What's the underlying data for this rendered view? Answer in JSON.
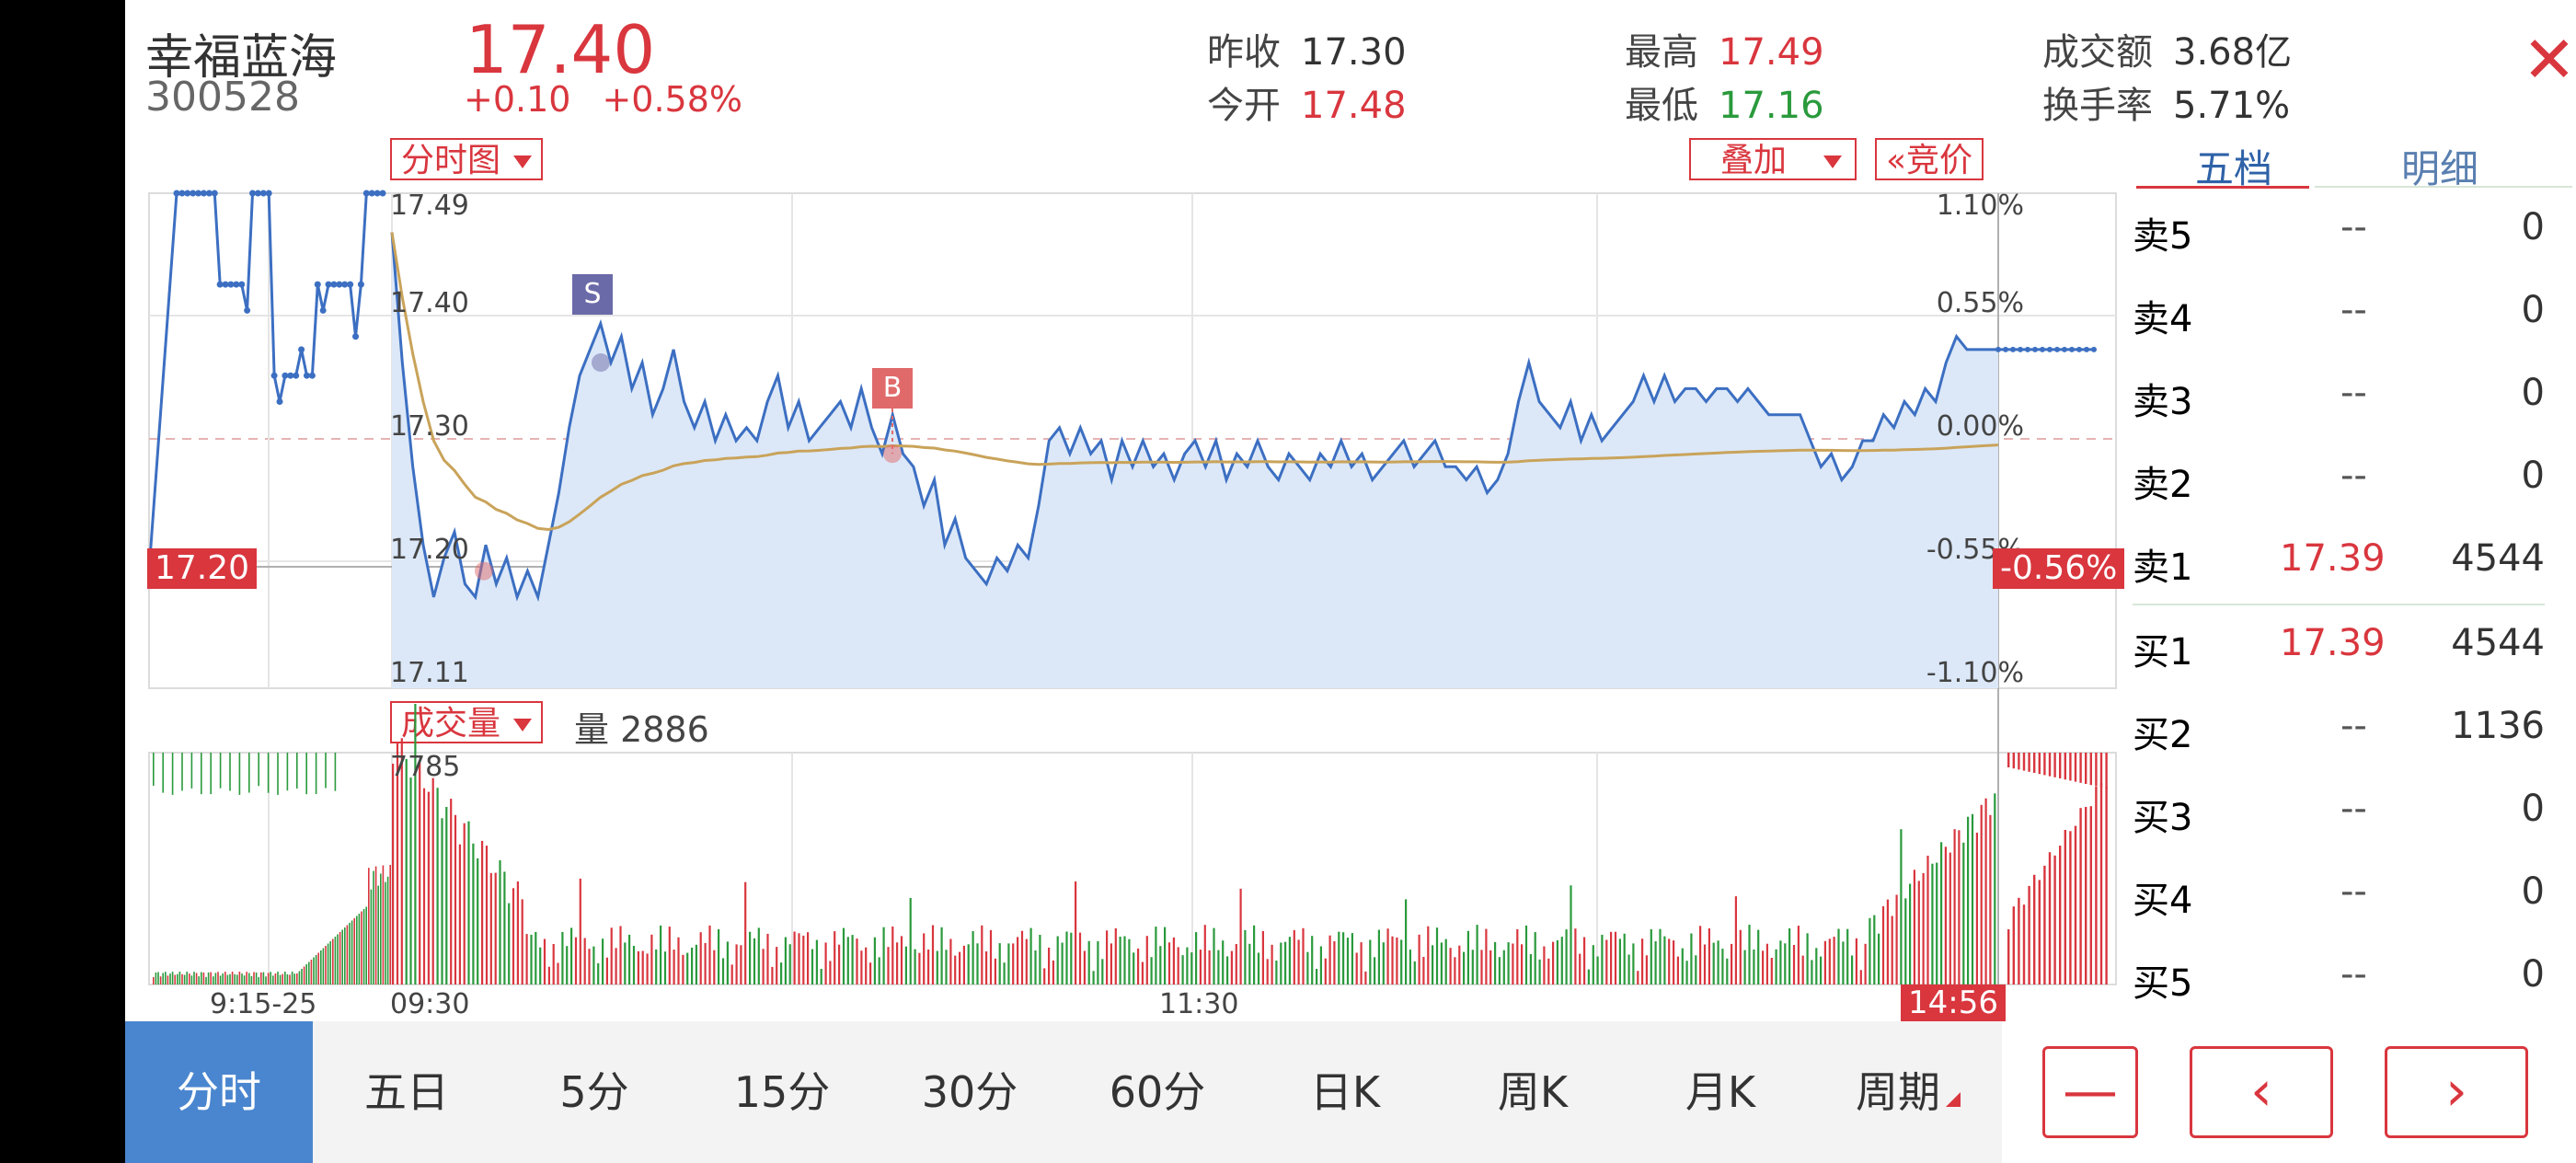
{
  "stock": {
    "name": "幸福蓝海",
    "code": "300528",
    "price": "17.40",
    "change": "+0.10",
    "change_pct": "+0.58%"
  },
  "stats": {
    "prev_close": {
      "label": "昨收",
      "value": "17.30"
    },
    "open": {
      "label": "今开",
      "value": "17.48"
    },
    "high": {
      "label": "最高",
      "value": "17.49"
    },
    "low": {
      "label": "最低",
      "value": "17.16"
    },
    "turnover": {
      "label": "成交额",
      "value": "3.68亿"
    },
    "turnover_rate": {
      "label": "换手率",
      "value": "5.71%"
    }
  },
  "toolbar": {
    "chart_type": "分时图",
    "overlay": "叠加",
    "auction": "«竞价",
    "volume_type": "成交量",
    "volume_label": "量 2886"
  },
  "chart_data": {
    "type": "line",
    "price_axis": [
      "17.49",
      "17.40",
      "17.30",
      "17.20",
      "17.11"
    ],
    "pct_axis": [
      "1.10%",
      "0.55%",
      "0.00%",
      "-0.55%",
      "-1.10%"
    ],
    "ylim": [
      17.11,
      17.49
    ],
    "cursor": {
      "price": "17.20",
      "pct": "-0.56%",
      "time": "14:56"
    },
    "time_labels": [
      "9:15-25",
      "09:30",
      "11:30"
    ],
    "volume_max_label": "7785",
    "markers": [
      {
        "label": "S",
        "price": 17.36
      },
      {
        "label": "B",
        "price": 17.29
      }
    ],
    "auction_prices": [
      17.49,
      17.49,
      17.49,
      17.49,
      17.49,
      17.49,
      17.49,
      17.49,
      17.42,
      17.42,
      17.42,
      17.42,
      17.42,
      17.4,
      17.49,
      17.49,
      17.49,
      17.49,
      17.35,
      17.33,
      17.35,
      17.35,
      17.35,
      17.37,
      17.35,
      17.35,
      17.42,
      17.4,
      17.42,
      17.42,
      17.42,
      17.42,
      17.42,
      17.38,
      17.42,
      17.49,
      17.49,
      17.49,
      17.49
    ],
    "prices": [
      17.46,
      17.36,
      17.28,
      17.22,
      17.18,
      17.21,
      17.23,
      17.19,
      17.18,
      17.22,
      17.19,
      17.21,
      17.18,
      17.2,
      17.18,
      17.22,
      17.26,
      17.31,
      17.35,
      17.37,
      17.39,
      17.36,
      17.38,
      17.34,
      17.36,
      17.32,
      17.34,
      17.37,
      17.33,
      17.31,
      17.33,
      17.3,
      17.32,
      17.3,
      17.31,
      17.3,
      17.33,
      17.35,
      17.31,
      17.33,
      17.3,
      17.31,
      17.32,
      17.33,
      17.31,
      17.34,
      17.31,
      17.29,
      17.32,
      17.29,
      17.28,
      17.25,
      17.27,
      17.22,
      17.24,
      17.21,
      17.2,
      17.19,
      17.21,
      17.2,
      17.22,
      17.21,
      17.25,
      17.3,
      17.31,
      17.29,
      17.31,
      17.29,
      17.3,
      17.27,
      17.3,
      17.28,
      17.3,
      17.28,
      17.29,
      17.27,
      17.29,
      17.3,
      17.28,
      17.3,
      17.27,
      17.29,
      17.28,
      17.3,
      17.28,
      17.27,
      17.29,
      17.28,
      17.27,
      17.29,
      17.28,
      17.3,
      17.28,
      17.29,
      17.27,
      17.28,
      17.29,
      17.3,
      17.28,
      17.29,
      17.3,
      17.28,
      17.28,
      17.27,
      17.28,
      17.26,
      17.27,
      17.29,
      17.33,
      17.36,
      17.33,
      17.32,
      17.31,
      17.33,
      17.3,
      17.32,
      17.3,
      17.31,
      17.32,
      17.33,
      17.35,
      17.33,
      17.35,
      17.33,
      17.34,
      17.34,
      17.33,
      17.34,
      17.34,
      17.33,
      17.34,
      17.33,
      17.32,
      17.32,
      17.32,
      17.32,
      17.3,
      17.28,
      17.29,
      17.27,
      17.28,
      17.3,
      17.3,
      17.32,
      17.31,
      17.33,
      17.32,
      17.34,
      17.33,
      17.36,
      17.38,
      17.37,
      17.37,
      17.37,
      17.37
    ]
  },
  "order_book": {
    "tabs": [
      "五档",
      "明细"
    ],
    "asks": [
      {
        "label": "卖5",
        "price": "--",
        "vol": "0"
      },
      {
        "label": "卖4",
        "price": "--",
        "vol": "0"
      },
      {
        "label": "卖3",
        "price": "--",
        "vol": "0"
      },
      {
        "label": "卖2",
        "price": "--",
        "vol": "0"
      },
      {
        "label": "卖1",
        "price": "17.39",
        "vol": "4544"
      }
    ],
    "bids": [
      {
        "label": "买1",
        "price": "17.39",
        "vol": "4544"
      },
      {
        "label": "买2",
        "price": "--",
        "vol": "1136"
      },
      {
        "label": "买3",
        "price": "--",
        "vol": "0"
      },
      {
        "label": "买4",
        "price": "--",
        "vol": "0"
      },
      {
        "label": "买5",
        "price": "--",
        "vol": "0"
      }
    ]
  },
  "periods": [
    "分时",
    "五日",
    "5分",
    "15分",
    "30分",
    "60分",
    "日K",
    "周K",
    "月K",
    "周期"
  ],
  "controls": {
    "minus": "—",
    "prev": "‹",
    "next": "›"
  }
}
